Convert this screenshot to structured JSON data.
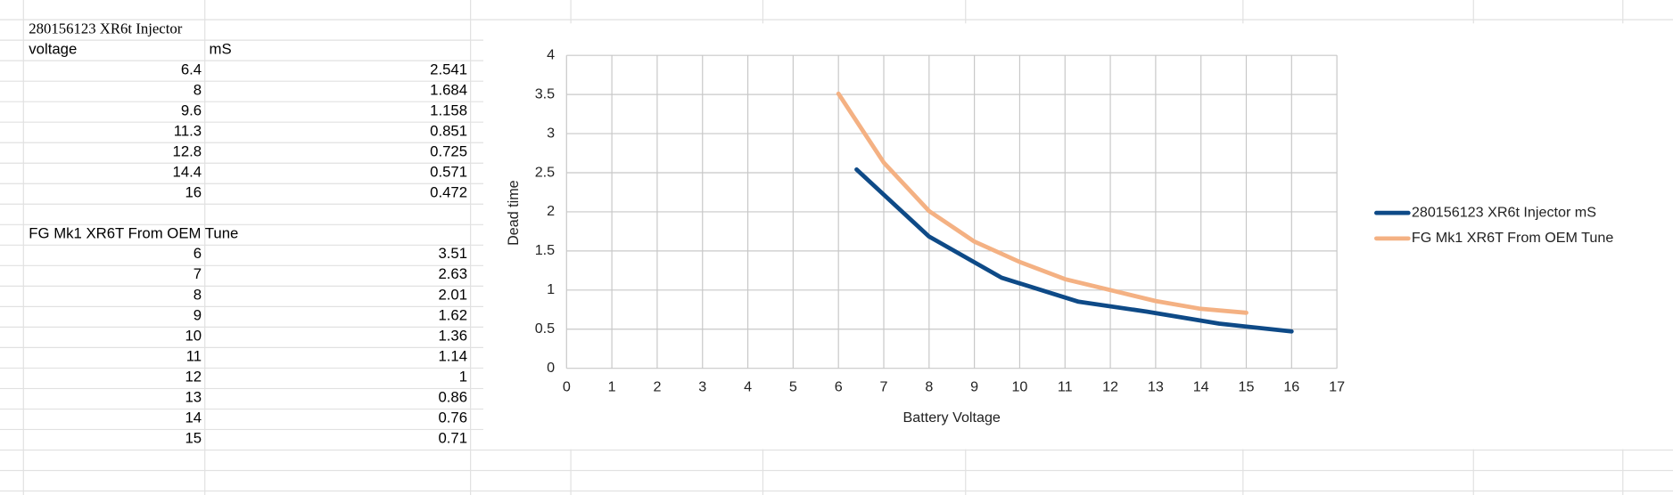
{
  "sheet": {
    "table_title": "280156123 XR6t Injector",
    "col_x": "voltage",
    "col_y": "mS"
  },
  "chart_data": {
    "type": "line",
    "xlabel": "Battery Voltage",
    "ylabel": "Dead time",
    "xlim": [
      0,
      17
    ],
    "xticks": [
      0,
      1,
      2,
      3,
      4,
      5,
      6,
      7,
      8,
      9,
      10,
      11,
      12,
      13,
      14,
      15,
      16,
      17
    ],
    "ylim": [
      0,
      4
    ],
    "yticks": [
      0,
      0.5,
      1,
      1.5,
      2,
      2.5,
      3,
      3.5,
      4
    ],
    "grid": true,
    "legend": "right",
    "series": [
      {
        "name": "280156123 XR6t Injector mS",
        "color": "#0e4a87",
        "x": [
          6.4,
          8,
          9.6,
          11.3,
          12.8,
          14.4,
          16
        ],
        "values": [
          2.541,
          1.684,
          1.158,
          0.851,
          0.725,
          0.571,
          0.472
        ]
      },
      {
        "name": "FG Mk1 XR6T From OEM Tune",
        "color": "#f4b183",
        "x": [
          6,
          7,
          8,
          9,
          10,
          11,
          12,
          13,
          14,
          15
        ],
        "values": [
          3.51,
          2.63,
          2.01,
          1.62,
          1.36,
          1.14,
          1,
          0.86,
          0.76,
          0.71
        ]
      }
    ]
  }
}
